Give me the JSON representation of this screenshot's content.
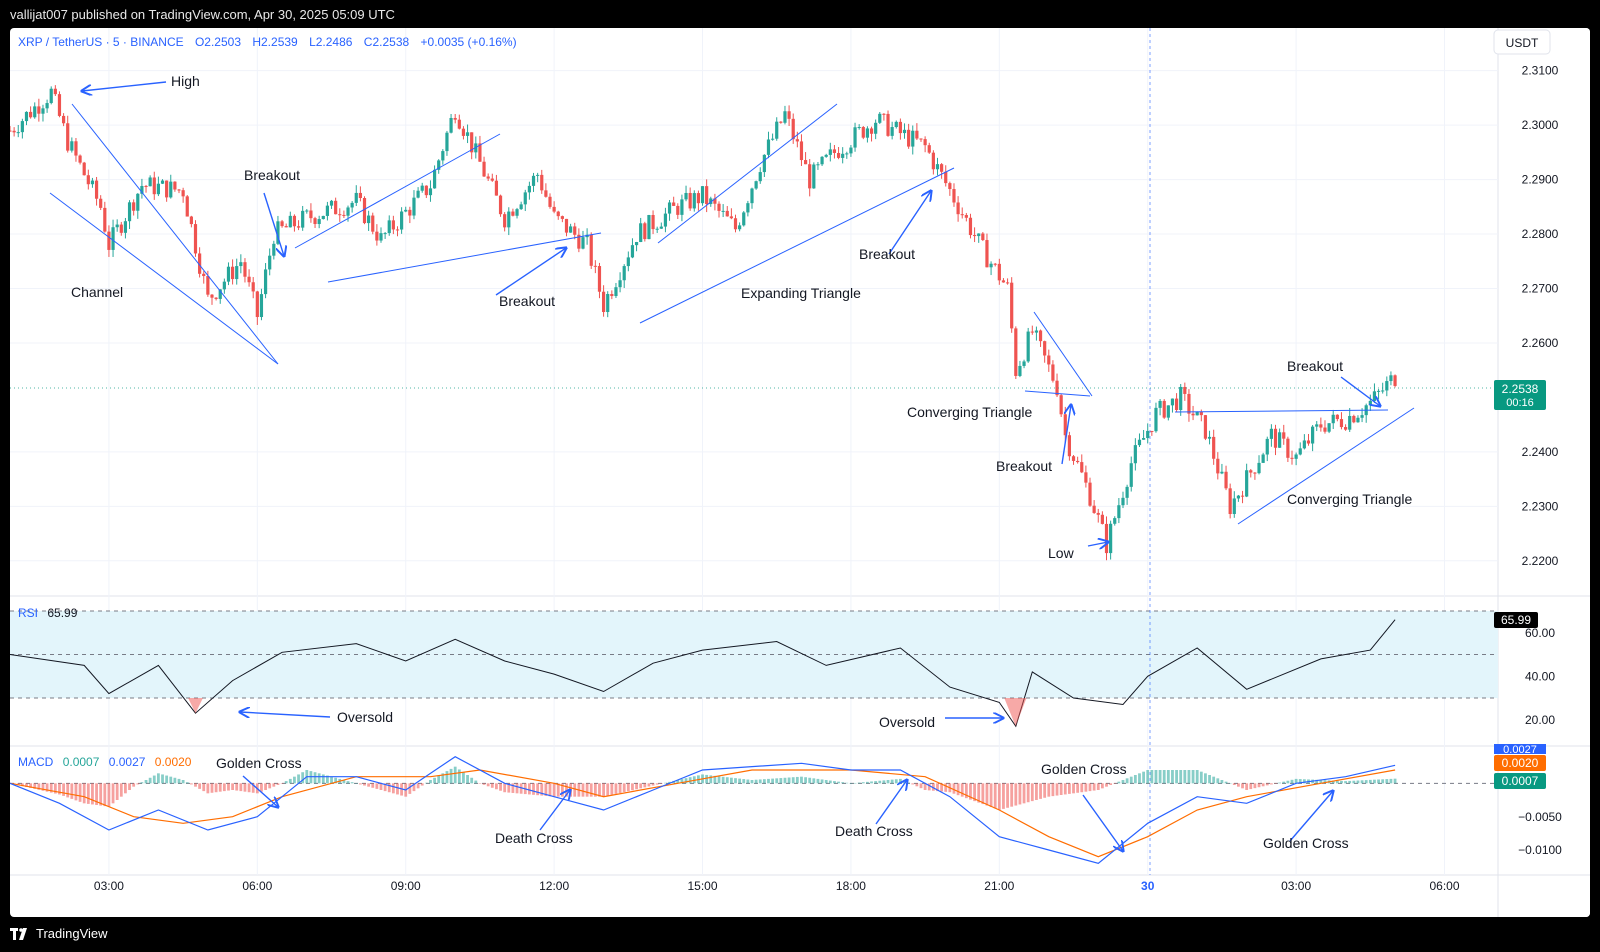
{
  "publisher_line": "vallijat007 published on TradingView.com, Apr 30, 2025 05:09 UTC",
  "footer_brand": "TradingView",
  "colors": {
    "up": "#26a69a",
    "down": "#ef5350",
    "annotation": "#2962ff",
    "rsi_band": "#e3f5fb",
    "macd_line": "#2962ff",
    "signal_line": "#ff6d00",
    "price_label_bg": "#089981"
  },
  "legend": {
    "symbol": "XRP / TetherUS · 5 · BINANCE",
    "open": "O2.2503",
    "high": "H2.2539",
    "low": "L2.2486",
    "close": "C2.2538",
    "change": "+0.0035 (+0.16%)"
  },
  "currency_button": "USDT",
  "price_axis_labels": [
    "2.3100",
    "2.3000",
    "2.2900",
    "2.2800",
    "2.2700",
    "2.2600",
    "2.2400",
    "2.2300",
    "2.2200"
  ],
  "last_price": {
    "value": "2.2538",
    "countdown": "00:16"
  },
  "rsi": {
    "label": "RSI",
    "value": "65.99",
    "axis_labels": [
      "60.00",
      "40.00",
      "20.00"
    ]
  },
  "macd": {
    "label": "MACD",
    "hist": "0.0007",
    "macd": "0.0027",
    "signal": "0.0020",
    "axis_labels": [
      "−0.0050",
      "−0.0100"
    ],
    "tags": [
      "0.0027",
      "0.0020",
      "0.0007"
    ]
  },
  "time_axis_labels": [
    "03:00",
    "06:00",
    "09:00",
    "12:00",
    "15:00",
    "18:00",
    "21:00",
    "30",
    "03:00",
    "06:00"
  ],
  "annotations": {
    "high": "High",
    "channel": "Channel",
    "breakout_1": "Breakout",
    "breakout_2": "Breakout",
    "breakout_3": "Breakout",
    "expanding_triangle": "Expanding Triangle",
    "converging_triangle_1": "Converging Triangle",
    "breakout_4": "Breakout",
    "low": "Low",
    "breakout_5": "Breakout",
    "converging_triangle_2": "Converging Triangle",
    "oversold_1": "Oversold",
    "oversold_2": "Oversold",
    "golden_cross_1": "Golden Cross",
    "death_cross_1": "Death Cross",
    "death_cross_2": "Death Cross",
    "golden_cross_2": "Golden Cross",
    "golden_cross_3": "Golden Cross"
  },
  "chart_data": {
    "type": "candlestick",
    "title": "XRP / TetherUS · 5 · BINANCE",
    "ylim": [
      2.215,
      2.316
    ],
    "x_ticks": [
      "03:00",
      "06:00",
      "09:00",
      "12:00",
      "15:00",
      "18:00",
      "21:00",
      "30",
      "03:00",
      "06:00"
    ],
    "price_path": [
      [
        "01:00",
        2.299
      ],
      [
        "01:50",
        2.306
      ],
      [
        "02:10",
        2.297
      ],
      [
        "02:50",
        2.285
      ],
      [
        "03:00",
        2.278
      ],
      [
        "03:40",
        2.289
      ],
      [
        "04:30",
        2.288
      ],
      [
        "05:00",
        2.268
      ],
      [
        "05:40",
        2.275
      ],
      [
        "06:00",
        2.265
      ],
      [
        "06:20",
        2.28
      ],
      [
        "07:00",
        2.283
      ],
      [
        "08:00",
        2.286
      ],
      [
        "08:30",
        2.279
      ],
      [
        "09:30",
        2.289
      ],
      [
        "10:00",
        2.303
      ],
      [
        "10:30",
        2.293
      ],
      [
        "11:00",
        2.283
      ],
      [
        "11:40",
        2.291
      ],
      [
        "12:00",
        2.283
      ],
      [
        "12:40",
        2.278
      ],
      [
        "13:00",
        2.267
      ],
      [
        "13:40",
        2.28
      ],
      [
        "14:30",
        2.285
      ],
      [
        "15:00",
        2.287
      ],
      [
        "15:40",
        2.281
      ],
      [
        "16:10",
        2.293
      ],
      [
        "16:40",
        2.302
      ],
      [
        "17:10",
        2.29
      ],
      [
        "17:40",
        2.295
      ],
      [
        "18:30",
        2.301
      ],
      [
        "19:30",
        2.296
      ],
      [
        "20:00",
        2.288
      ],
      [
        "20:40",
        2.277
      ],
      [
        "21:10",
        2.27
      ],
      [
        "21:20",
        2.255
      ],
      [
        "21:40",
        2.262
      ],
      [
        "22:10",
        2.252
      ],
      [
        "22:20",
        2.243
      ],
      [
        "22:50",
        2.232
      ],
      [
        "23:10",
        2.223
      ],
      [
        "23:40",
        2.238
      ],
      [
        "00:10",
        2.247
      ],
      [
        "00:40",
        2.25
      ],
      [
        "01:10",
        2.244
      ],
      [
        "01:40",
        2.23
      ],
      [
        "02:00",
        2.235
      ],
      [
        "02:30",
        2.243
      ],
      [
        "03:00",
        2.239
      ],
      [
        "03:30",
        2.245
      ],
      [
        "04:00",
        2.246
      ],
      [
        "04:30",
        2.249
      ],
      [
        "05:00",
        2.2538
      ]
    ],
    "rsi_path": [
      [
        "01:00",
        50
      ],
      [
        "02:30",
        45
      ],
      [
        "03:00",
        32
      ],
      [
        "04:00",
        45
      ],
      [
        "04:45",
        23
      ],
      [
        "05:30",
        38
      ],
      [
        "06:30",
        51
      ],
      [
        "08:00",
        55
      ],
      [
        "09:00",
        47
      ],
      [
        "10:00",
        57
      ],
      [
        "11:00",
        47
      ],
      [
        "12:00",
        41
      ],
      [
        "13:00",
        33
      ],
      [
        "14:00",
        46
      ],
      [
        "15:00",
        52
      ],
      [
        "16:30",
        56
      ],
      [
        "17:30",
        45
      ],
      [
        "19:00",
        53
      ],
      [
        "20:00",
        35
      ],
      [
        "21:00",
        28
      ],
      [
        "21:20",
        17
      ],
      [
        "21:40",
        42
      ],
      [
        "22:30",
        30
      ],
      [
        "23:30",
        27
      ],
      [
        "00:00",
        40
      ],
      [
        "01:00",
        53
      ],
      [
        "02:00",
        34
      ],
      [
        "03:30",
        48
      ],
      [
        "04:30",
        52
      ],
      [
        "05:00",
        65.99
      ]
    ],
    "macd_path": [
      [
        "01:00",
        0.0
      ],
      [
        "02:00",
        -0.003
      ],
      [
        "03:00",
        -0.007
      ],
      [
        "04:00",
        -0.004
      ],
      [
        "05:00",
        -0.007
      ],
      [
        "06:00",
        -0.005
      ],
      [
        "07:00",
        0.001
      ],
      [
        "08:00",
        0.001
      ],
      [
        "09:00",
        -0.001
      ],
      [
        "10:00",
        0.004
      ],
      [
        "11:00",
        0.0
      ],
      [
        "12:00",
        -0.002
      ],
      [
        "13:00",
        -0.004
      ],
      [
        "14:00",
        -0.001
      ],
      [
        "15:00",
        0.002
      ],
      [
        "17:00",
        0.003
      ],
      [
        "18:00",
        0.002
      ],
      [
        "19:00",
        0.002
      ],
      [
        "20:00",
        -0.002
      ],
      [
        "21:00",
        -0.008
      ],
      [
        "22:00",
        -0.01
      ],
      [
        "23:00",
        -0.012
      ],
      [
        "00:00",
        -0.006
      ],
      [
        "01:00",
        -0.002
      ],
      [
        "02:00",
        -0.003
      ],
      [
        "03:00",
        0.0
      ],
      [
        "04:00",
        0.001
      ],
      [
        "05:00",
        0.0027
      ]
    ],
    "signal_path": [
      [
        "01:00",
        0.0
      ],
      [
        "02:30",
        -0.002
      ],
      [
        "03:30",
        -0.005
      ],
      [
        "04:30",
        -0.006
      ],
      [
        "05:30",
        -0.005
      ],
      [
        "06:30",
        -0.002
      ],
      [
        "08:00",
        0.001
      ],
      [
        "09:30",
        0.001
      ],
      [
        "10:30",
        0.002
      ],
      [
        "12:00",
        0.0
      ],
      [
        "13:00",
        -0.002
      ],
      [
        "14:30",
        0.0
      ],
      [
        "16:00",
        0.002
      ],
      [
        "18:00",
        0.002
      ],
      [
        "19:30",
        0.001
      ],
      [
        "21:00",
        -0.004
      ],
      [
        "22:00",
        -0.008
      ],
      [
        "23:00",
        -0.011
      ],
      [
        "00:00",
        -0.008
      ],
      [
        "01:00",
        -0.004
      ],
      [
        "02:00",
        -0.002
      ],
      [
        "03:30",
        0.0
      ],
      [
        "05:00",
        0.002
      ]
    ]
  }
}
